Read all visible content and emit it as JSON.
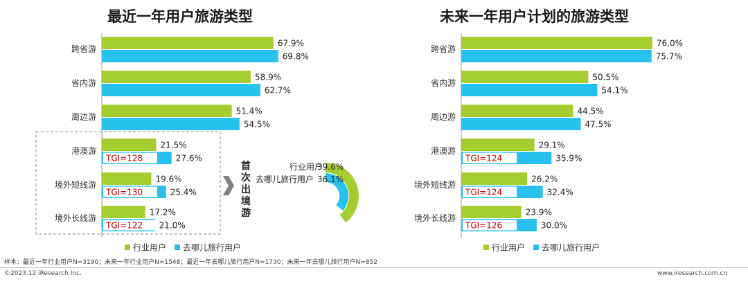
{
  "colors": {
    "industry": "#a6cd30",
    "qunar": "#27c1ee",
    "tgi_text": "#c00000",
    "tgi_bg": "#ffffff"
  },
  "callout": {
    "vertical_label": "首次出境游",
    "legend": [
      {
        "name": "行业用户",
        "value": "39.6%",
        "fraction": 0.396
      },
      {
        "name": "去哪儿旅行用户",
        "value": "36.1%",
        "fraction": 0.361
      }
    ]
  },
  "footer": {
    "sample": "样本：最近一年行业用户N=3190；未来一年行业用户N=1548；最近一年去哪儿旅行用户N=1730；未来一年去哪儿旅行用户N=852",
    "copyright": "©2023.12 iResearch Inc.",
    "website": "www.iresearch.com.cn"
  },
  "chart_data": [
    {
      "type": "bar",
      "orientation": "horizontal",
      "title": "最近一年用户旅游类型",
      "categories": [
        "跨省游",
        "省内游",
        "周边游",
        "港澳游",
        "境外短线游",
        "境外长线游"
      ],
      "series": [
        {
          "name": "行业用户",
          "values": [
            67.9,
            58.9,
            51.4,
            21.5,
            19.6,
            17.2
          ],
          "labels": [
            "67.9%",
            "58.9%",
            "51.4%",
            "21.5%",
            "19.6%",
            "17.2%"
          ]
        },
        {
          "name": "去哪儿旅行用户",
          "values": [
            69.8,
            62.7,
            54.5,
            27.6,
            25.4,
            21.0
          ],
          "labels": [
            "69.8%",
            "62.7%",
            "54.5%",
            "27.6%",
            "25.4%",
            "21.0%"
          ]
        }
      ],
      "tgi": [
        "",
        "",
        "",
        "TGI=128",
        "TGI=130",
        "TGI=122"
      ],
      "xlim": [
        0,
        100
      ],
      "legend": "bottom"
    },
    {
      "type": "bar",
      "orientation": "horizontal",
      "title": "未来一年用户计划的旅游类型",
      "categories": [
        "跨省游",
        "省内游",
        "周边游",
        "港澳游",
        "境外短线游",
        "境外长线游"
      ],
      "series": [
        {
          "name": "行业用户",
          "values": [
            76.0,
            50.5,
            44.5,
            29.1,
            26.2,
            23.9
          ],
          "labels": [
            "76.0%",
            "50.5%",
            "44.5%",
            "29.1%",
            "26.2%",
            "23.9%"
          ]
        },
        {
          "name": "去哪儿旅行用户",
          "values": [
            75.7,
            54.1,
            47.5,
            35.9,
            32.4,
            30.0
          ],
          "labels": [
            "75.7%",
            "54.1%",
            "47.5%",
            "35.9%",
            "32.4%",
            "30.0%"
          ]
        }
      ],
      "tgi": [
        "",
        "",
        "",
        "TGI=124",
        "TGI=124",
        "TGI=126"
      ],
      "xlim": [
        0,
        100
      ],
      "legend": "bottom"
    }
  ]
}
